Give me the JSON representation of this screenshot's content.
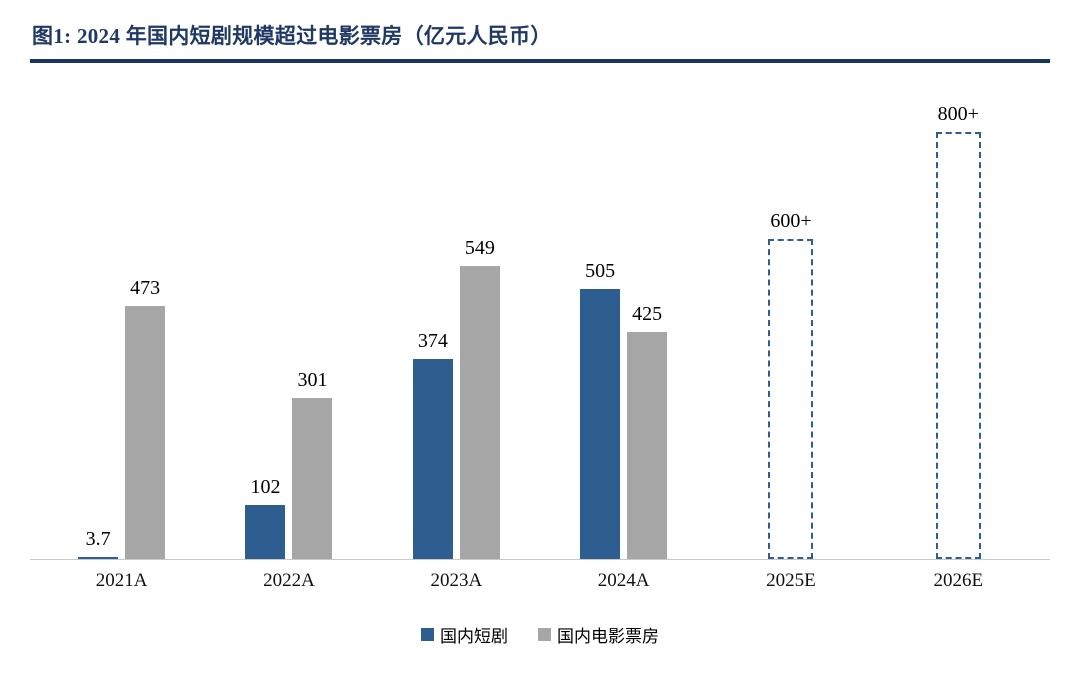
{
  "header": {
    "title": "图1: 2024 年国内短剧规模超过电影票房（亿元人民币）"
  },
  "colors": {
    "title_navy": "#1F3864",
    "rule_navy": "#17375E",
    "short_drama_blue": "#2E5E90",
    "box_office_gray": "#A6A6A6",
    "axis_line": "#C9C9C9"
  },
  "chart_data": {
    "type": "bar",
    "title": "2024 年国内短剧规模超过电影票房（亿元人民币）",
    "unit": "亿元人民币",
    "categories": [
      "2021A",
      "2022A",
      "2023A",
      "2024A",
      "2025E",
      "2026E"
    ],
    "series": [
      {
        "name": "国内短剧",
        "color": "#2E5E90",
        "values": [
          3.7,
          102,
          374,
          505,
          600,
          800
        ],
        "labels": [
          "3.7",
          "102",
          "374",
          "505",
          "600+",
          "800+"
        ],
        "forecast": [
          false,
          false,
          false,
          false,
          true,
          true
        ]
      },
      {
        "name": "国内电影票房",
        "color": "#A6A6A6",
        "values": [
          473,
          301,
          549,
          425,
          null,
          null
        ],
        "labels": [
          "473",
          "301",
          "549",
          "425",
          null,
          null
        ],
        "forecast": [
          false,
          false,
          false,
          false,
          false,
          false
        ]
      }
    ],
    "ylim": [
      0,
      880
    ],
    "grid": false,
    "legend_position": "bottom",
    "xlabel": "",
    "ylabel": ""
  }
}
